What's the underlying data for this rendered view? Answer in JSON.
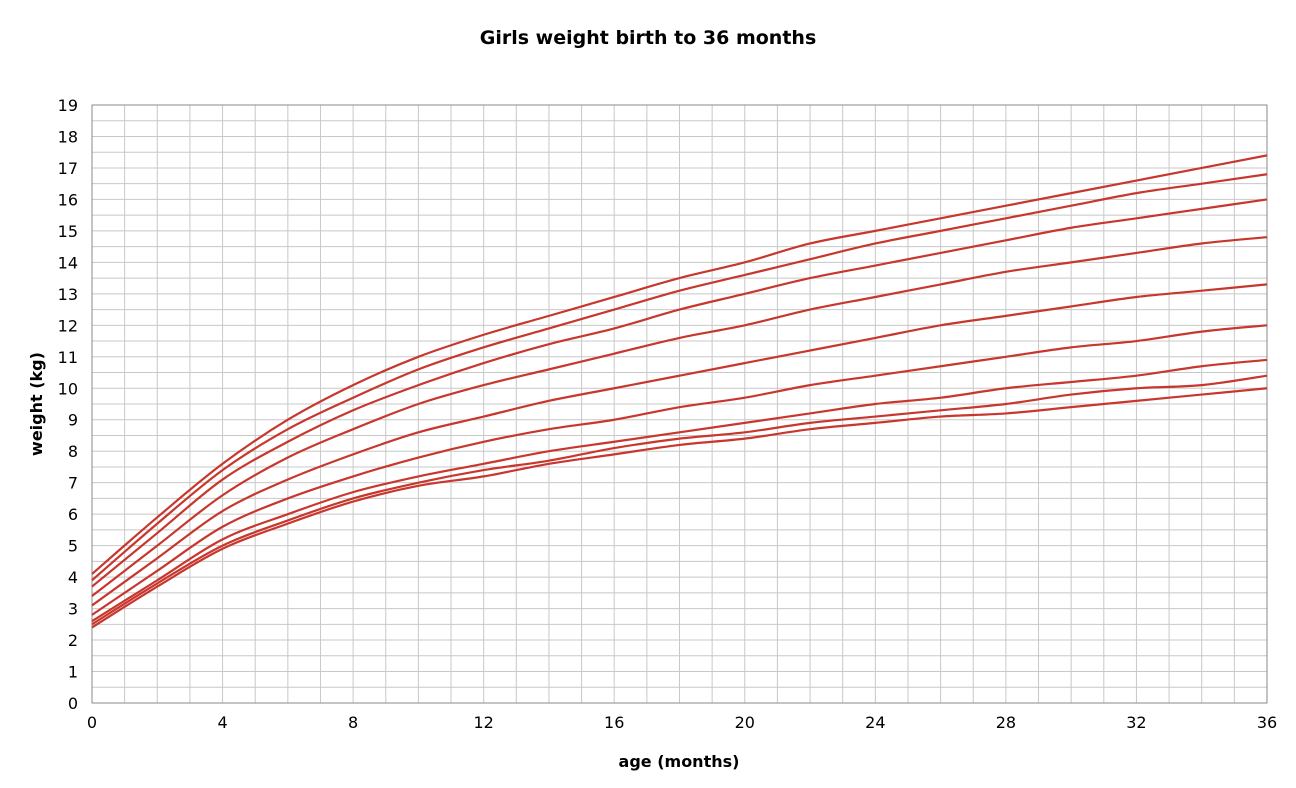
{
  "chart_data": {
    "type": "line",
    "title": "Girls weight birth to 36 months",
    "xlabel": "age (months)",
    "ylabel": "weight (kg)",
    "xlim": [
      0,
      36
    ],
    "ylim": [
      0,
      19
    ],
    "x_ticks": [
      0,
      4,
      8,
      12,
      16,
      20,
      24,
      28,
      32,
      36
    ],
    "y_ticks": [
      0,
      1,
      2,
      3,
      4,
      5,
      6,
      7,
      8,
      9,
      10,
      11,
      12,
      13,
      14,
      15,
      16,
      17,
      18,
      19
    ],
    "grid": true,
    "line_color": "#c8372d",
    "grid_color": "#c8c8c8",
    "x": [
      0,
      2,
      4,
      6,
      8,
      10,
      12,
      14,
      16,
      18,
      20,
      22,
      24,
      26,
      28,
      30,
      32,
      34,
      36
    ],
    "series": [
      {
        "values": [
          2.4,
          3.7,
          4.9,
          5.7,
          6.4,
          6.9,
          7.2,
          7.6,
          7.9,
          8.2,
          8.4,
          8.7,
          8.9,
          9.1,
          9.2,
          9.4,
          9.6,
          9.8,
          10.0
        ]
      },
      {
        "values": [
          2.5,
          3.8,
          5.0,
          5.8,
          6.5,
          7.0,
          7.4,
          7.7,
          8.1,
          8.4,
          8.6,
          8.9,
          9.1,
          9.3,
          9.5,
          9.8,
          10.0,
          10.1,
          10.4
        ]
      },
      {
        "values": [
          2.6,
          3.9,
          5.2,
          6.0,
          6.7,
          7.2,
          7.6,
          8.0,
          8.3,
          8.6,
          8.9,
          9.2,
          9.5,
          9.7,
          10.0,
          10.2,
          10.4,
          10.7,
          10.9
        ]
      },
      {
        "values": [
          2.8,
          4.2,
          5.6,
          6.5,
          7.2,
          7.8,
          8.3,
          8.7,
          9.0,
          9.4,
          9.7,
          10.1,
          10.4,
          10.7,
          11.0,
          11.3,
          11.5,
          11.8,
          12.0
        ]
      },
      {
        "values": [
          3.1,
          4.6,
          6.1,
          7.1,
          7.9,
          8.6,
          9.1,
          9.6,
          10.0,
          10.4,
          10.8,
          11.2,
          11.6,
          12.0,
          12.3,
          12.6,
          12.9,
          13.1,
          13.3
        ]
      },
      {
        "values": [
          3.4,
          5.0,
          6.6,
          7.8,
          8.7,
          9.5,
          10.1,
          10.6,
          11.1,
          11.6,
          12.0,
          12.5,
          12.9,
          13.3,
          13.7,
          14.0,
          14.3,
          14.6,
          14.8
        ]
      },
      {
        "values": [
          3.7,
          5.4,
          7.1,
          8.3,
          9.3,
          10.1,
          10.8,
          11.4,
          11.9,
          12.5,
          13.0,
          13.5,
          13.9,
          14.3,
          14.7,
          15.1,
          15.4,
          15.7,
          16.0
        ]
      },
      {
        "values": [
          3.9,
          5.7,
          7.4,
          8.7,
          9.7,
          10.6,
          11.3,
          11.9,
          12.5,
          13.1,
          13.6,
          14.1,
          14.6,
          15.0,
          15.4,
          15.8,
          16.2,
          16.5,
          16.8
        ]
      },
      {
        "values": [
          4.1,
          5.9,
          7.6,
          9.0,
          10.1,
          11.0,
          11.7,
          12.3,
          12.9,
          13.5,
          14.0,
          14.6,
          15.0,
          15.4,
          15.8,
          16.2,
          16.6,
          17.0,
          17.4
        ]
      }
    ]
  }
}
